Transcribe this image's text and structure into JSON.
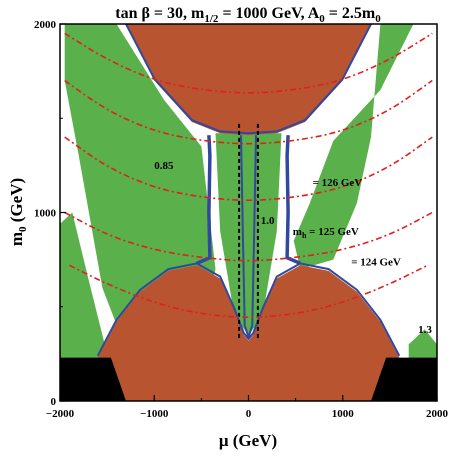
{
  "chart_data": {
    "type": "contour",
    "title": "tan β = 30, m1/2 = 1000 GeV, A0 = 2.5m0",
    "title_parts": {
      "p1": "tan β = 30, m",
      "p1_sub": "1/2",
      "p2": " = 1000 GeV, A",
      "p2_sub": "0",
      "p3": " = 2.5m",
      "p3_sub": "0"
    },
    "xlabel": "μ  (GeV)",
    "ylabel_main": "m",
    "ylabel_sub": "0",
    "ylabel_unit": " (GeV)",
    "xlim": [
      -2000,
      2000
    ],
    "ylim": [
      0,
      2000
    ],
    "x_ticks": [
      {
        "value": -2000,
        "label": "−2000"
      },
      {
        "value": -1000,
        "label": "−1000"
      },
      {
        "value": 0,
        "label": "0"
      },
      {
        "value": 1000,
        "label": "1000"
      },
      {
        "value": 2000,
        "label": "2000"
      }
    ],
    "y_ticks": [
      {
        "value": 0,
        "label": "0"
      },
      {
        "value": 1000,
        "label": "1000"
      },
      {
        "value": 2000,
        "label": "2000"
      }
    ],
    "colors": {
      "excluded": "#b85530",
      "dark_matter_band": "#5ab04a",
      "relic_strip": "#3048a0",
      "higgs_contour": "#e02020",
      "ratio_contour": "#000000",
      "charged_lsp": "#000000"
    },
    "higgs_contours": [
      {
        "mh": 124,
        "label": "= 124 GeV",
        "x": [
          -1900,
          -1500,
          -1000,
          -500,
          0,
          500,
          1000,
          1500,
          1900
        ],
        "y": [
          720,
          620,
          520,
          460,
          440,
          460,
          520,
          620,
          720
        ]
      },
      {
        "mh": 125,
        "label": "m",
        "label_sub": "h",
        "label_rest": " = 125 GeV",
        "x": [
          -1950,
          -1500,
          -1000,
          -500,
          0,
          500,
          1000,
          1500,
          1950
        ],
        "y": [
          1000,
          880,
          800,
          760,
          740,
          760,
          800,
          880,
          1000
        ]
      },
      {
        "mh": 126,
        "label": "= 126 GeV",
        "x": [
          -1950,
          -1500,
          -1000,
          -500,
          0,
          500,
          1000,
          1500,
          1950
        ],
        "y": [
          1400,
          1240,
          1130,
          1080,
          1060,
          1080,
          1130,
          1240,
          1400
        ]
      },
      {
        "mh": 127,
        "label": "",
        "x": [
          -1950,
          -1500,
          -1000,
          -500,
          0,
          500,
          1000,
          1500,
          1950
        ],
        "y": [
          1700,
          1540,
          1430,
          1380,
          1360,
          1380,
          1430,
          1540,
          1700
        ]
      },
      {
        "mh": 128,
        "label": "",
        "x": [
          -1950,
          -1500,
          -1000,
          -500,
          0,
          500,
          1000,
          1500,
          1950
        ],
        "y": [
          1950,
          1810,
          1700,
          1650,
          1630,
          1650,
          1700,
          1810,
          1950
        ]
      }
    ],
    "ratio_labels": [
      {
        "text": "0.85",
        "x": -1000,
        "y": 1230
      },
      {
        "text": "1.0",
        "x": 130,
        "y": 940
      },
      {
        "text": "1.3",
        "x": 1800,
        "y": 360
      }
    ]
  }
}
